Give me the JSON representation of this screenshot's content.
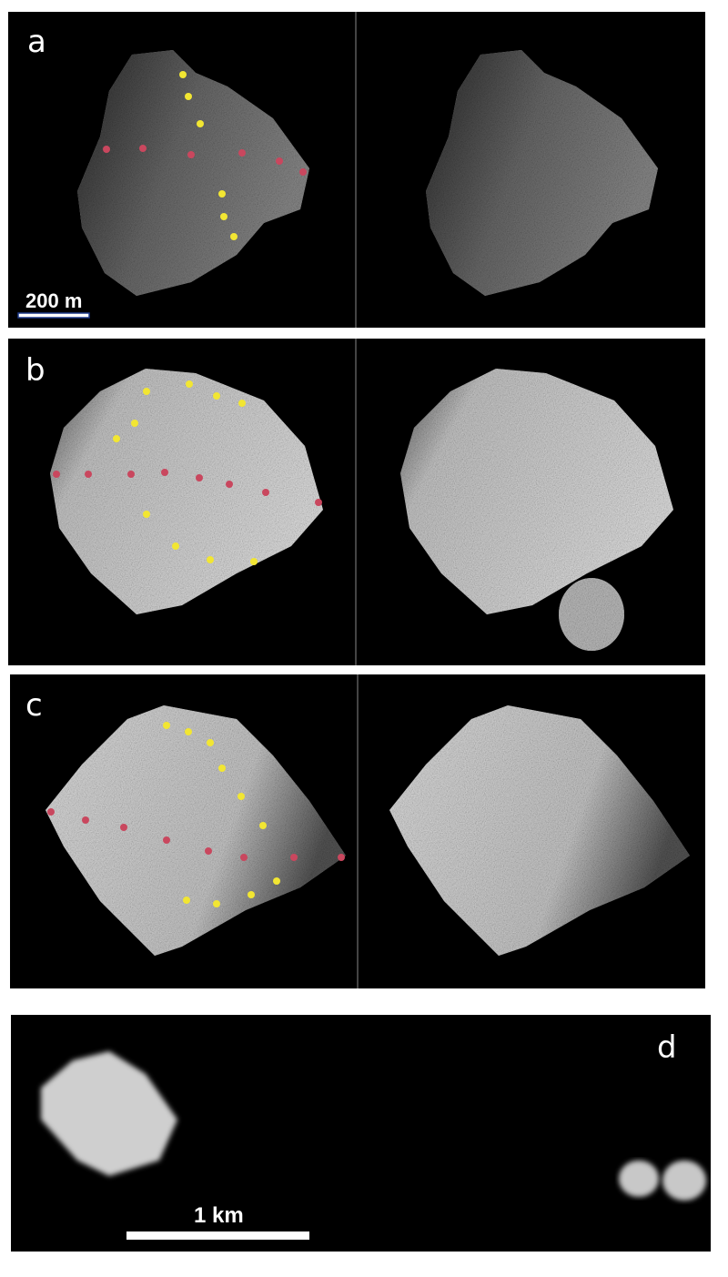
{
  "figure": {
    "panels": [
      {
        "label": "a",
        "scale_bar": "200 m"
      },
      {
        "label": "b"
      },
      {
        "label": "c"
      },
      {
        "label": "d",
        "scale_bar": "1 km"
      }
    ]
  },
  "colors": {
    "background": "#000000",
    "surface_dark": "#6e6e6e",
    "surface_light": "#d4d4d4",
    "marker_yellow": "#f2e632",
    "marker_red": "#c9475e",
    "scale_bar_border": "#1d3a8a"
  }
}
